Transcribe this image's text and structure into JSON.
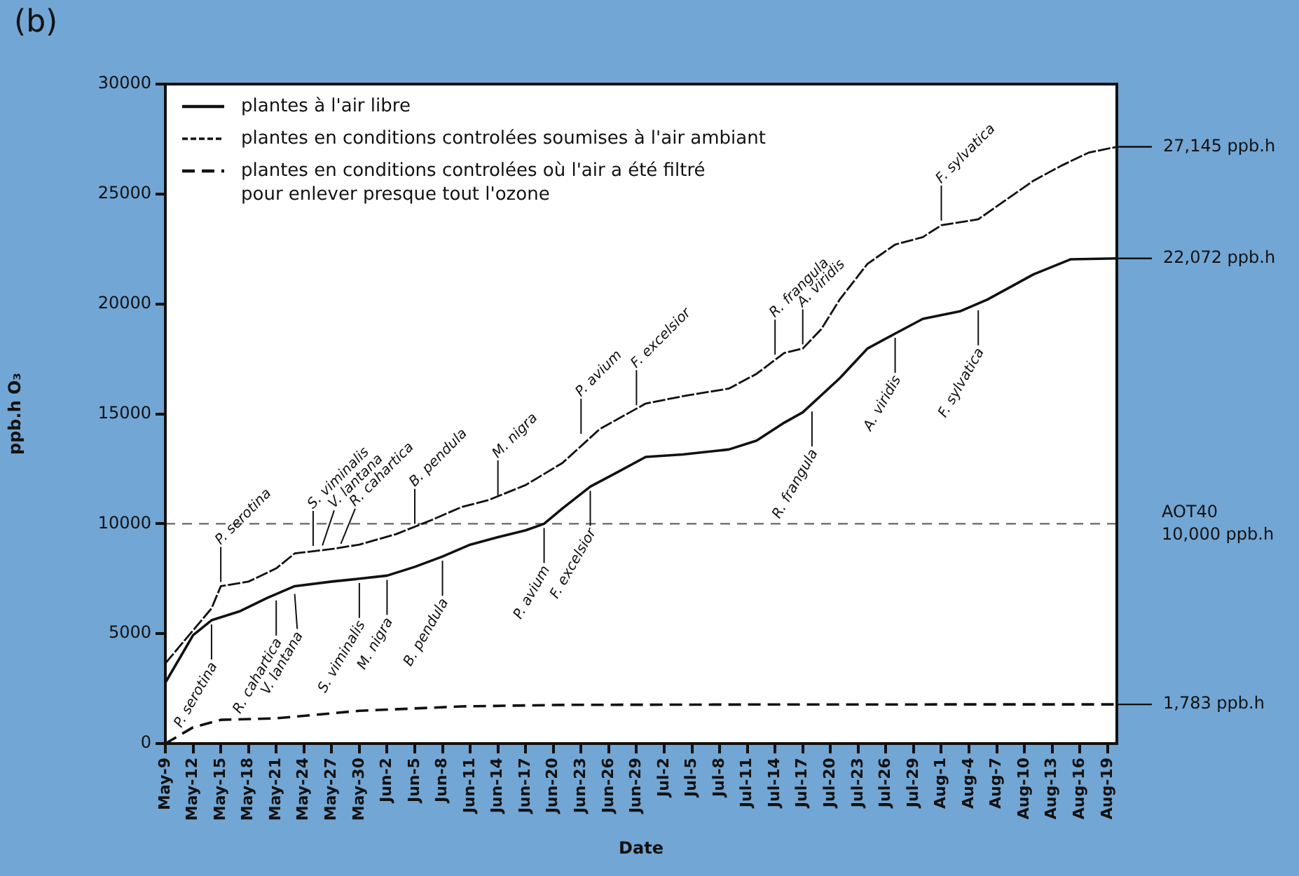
{
  "chart_data": {
    "type": "line",
    "title": "(b)",
    "xlabel": "Date",
    "ylabel": "ppb.h O₃",
    "xlim": [
      "--05-09",
      "--08-20"
    ],
    "xticks": [
      {
        "value": "--05-09",
        "label": "May-9"
      },
      {
        "value": "--05-12",
        "label": "May-12"
      },
      {
        "value": "--05-15",
        "label": "May-15"
      },
      {
        "value": "--05-18",
        "label": "May-18"
      },
      {
        "value": "--05-21",
        "label": "May-21"
      },
      {
        "value": "--05-24",
        "label": "May-24"
      },
      {
        "value": "--05-27",
        "label": "May-27"
      },
      {
        "value": "--05-30",
        "label": "May-30"
      },
      {
        "value": "--06-02",
        "label": "Jun-2"
      },
      {
        "value": "--06-05",
        "label": "Jun-5"
      },
      {
        "value": "--06-08",
        "label": "Jun-8"
      },
      {
        "value": "--06-11",
        "label": "Jun-11"
      },
      {
        "value": "--06-14",
        "label": "Jun-14"
      },
      {
        "value": "--06-17",
        "label": "Jun-17"
      },
      {
        "value": "--06-20",
        "label": "Jun-20"
      },
      {
        "value": "--06-23",
        "label": "Jun-23"
      },
      {
        "value": "--06-26",
        "label": "Jun-26"
      },
      {
        "value": "--06-29",
        "label": "Jun-29"
      },
      {
        "value": "--07-02",
        "label": "Jul-2"
      },
      {
        "value": "--07-05",
        "label": "Jul-5"
      },
      {
        "value": "--07-08",
        "label": "Jul-8"
      },
      {
        "value": "--07-11",
        "label": "Jul-11"
      },
      {
        "value": "--07-14",
        "label": "Jul-14"
      },
      {
        "value": "--07-17",
        "label": "Jul-17"
      },
      {
        "value": "--07-20",
        "label": "Jul-20"
      },
      {
        "value": "--07-23",
        "label": "Jul-23"
      },
      {
        "value": "--07-26",
        "label": "Jul-26"
      },
      {
        "value": "--07-29",
        "label": "Jul-29"
      },
      {
        "value": "--08-01",
        "label": "Aug-1"
      },
      {
        "value": "--08-04",
        "label": "Aug-4"
      },
      {
        "value": "--08-07",
        "label": "Aug-7"
      },
      {
        "value": "--08-10",
        "label": "Aug-10"
      },
      {
        "value": "--08-13",
        "label": "Aug-13"
      },
      {
        "value": "--08-16",
        "label": "Aug-16"
      },
      {
        "value": "--08-19",
        "label": "Aug-19"
      }
    ],
    "ylim": [
      0,
      30000
    ],
    "yticks": [
      0,
      5000,
      10000,
      15000,
      20000,
      25000,
      30000
    ],
    "legend": "top left",
    "grid": false,
    "marker": "none",
    "series": [
      {
        "name": "plantes à l'air libre",
        "color": "#111111",
        "line_style": "solid",
        "x": [
          "--05-09",
          "--05-12",
          "--05-14",
          "--05-17",
          "--05-20",
          "--05-23",
          "--05-27",
          "--05-30",
          "--06-02",
          "--06-05",
          "--06-08",
          "--06-11",
          "--06-14",
          "--06-17",
          "--06-19",
          "--06-21",
          "--06-24",
          "--06-27",
          "--06-30",
          "--07-04",
          "--07-09",
          "--07-12",
          "--07-15",
          "--07-17",
          "--07-21",
          "--07-24",
          "--07-27",
          "--07-30",
          "--08-03",
          "--08-06",
          "--08-11",
          "--08-15",
          "--08-20"
        ],
        "values": [
          2770,
          4930,
          5610,
          6010,
          6620,
          7160,
          7370,
          7500,
          7640,
          8040,
          8510,
          9050,
          9390,
          9700,
          10000,
          10700,
          11690,
          12360,
          13040,
          13150,
          13380,
          13780,
          14600,
          15070,
          16620,
          17970,
          18650,
          19320,
          19660,
          20200,
          21350,
          22030,
          22072
        ],
        "value_labels": [
          null,
          null,
          null,
          null,
          null,
          null,
          null,
          null,
          null,
          null,
          null,
          null,
          null,
          null,
          null,
          null,
          null,
          null,
          null,
          null,
          null,
          null,
          null,
          null,
          null,
          null,
          null,
          null,
          null,
          null,
          null,
          null,
          "22,072 ppb.h"
        ]
      },
      {
        "name": "plantes en conditions controlées soumises à l'air ambiant",
        "color": "#111111",
        "line_style": "dashed",
        "x": [
          "--05-09",
          "--05-14",
          "--05-15",
          "--05-18",
          "--05-21",
          "--05-23",
          "--05-27",
          "--05-30",
          "--06-03",
          "--06-07",
          "--06-10",
          "--06-13",
          "--06-17",
          "--06-21",
          "--06-25",
          "--06-30",
          "--07-04",
          "--07-09",
          "--07-12",
          "--07-15",
          "--07-17",
          "--07-19",
          "--07-21",
          "--07-24",
          "--07-27",
          "--07-30",
          "--08-01",
          "--08-05",
          "--08-08",
          "--08-11",
          "--08-14",
          "--08-17",
          "--08-20"
        ],
        "values": [
          3650,
          6150,
          7160,
          7370,
          7970,
          8650,
          8850,
          9050,
          9530,
          10200,
          10750,
          11080,
          11760,
          12770,
          14300,
          15470,
          15800,
          16150,
          16820,
          17770,
          17970,
          18850,
          20200,
          21820,
          22700,
          23040,
          23580,
          23850,
          24730,
          25610,
          26290,
          26890,
          27145
        ],
        "value_labels": [
          null,
          null,
          null,
          null,
          null,
          null,
          null,
          null,
          null,
          null,
          null,
          null,
          null,
          null,
          null,
          null,
          null,
          null,
          null,
          null,
          null,
          null,
          null,
          null,
          null,
          null,
          null,
          null,
          null,
          null,
          null,
          null,
          "27,145 ppb.h"
        ]
      },
      {
        "name": "plantes en conditions controlées où l'air a été filtré\npour enlever presque tout l'ozone",
        "color": "#111111",
        "line_style": "dashed",
        "x": [
          "--05-09",
          "--05-12",
          "--05-15",
          "--05-21",
          "--05-30",
          "--06-10",
          "--06-21",
          "--07-15",
          "--08-20"
        ],
        "values": [
          0,
          740,
          1080,
          1150,
          1490,
          1690,
          1760,
          1780,
          1783
        ],
        "value_labels": [
          null,
          null,
          null,
          null,
          null,
          null,
          null,
          null,
          "1,783 ppb.h"
        ]
      }
    ],
    "ref_lines": [
      {
        "axis": "y",
        "value": 10000,
        "label": "AOT40\n10,000 ppb.h",
        "color": "#666666",
        "line_style": "dashed"
      }
    ],
    "annotations": [
      {
        "text": "P. serotina",
        "x": "--05-15",
        "y": 7160
      },
      {
        "text": "S. viminalis",
        "x": "--05-25",
        "y": 8800
      },
      {
        "text": "V. lantana",
        "x": "--05-26",
        "y": 8820
      },
      {
        "text": "R. cahartica",
        "x": "--05-28",
        "y": 8900
      },
      {
        "text": "B. pendula",
        "x": "--06-05",
        "y": 9800
      },
      {
        "text": "M. nigra",
        "x": "--06-14",
        "y": 11100
      },
      {
        "text": "P. avium",
        "x": "--06-23",
        "y": 13900
      },
      {
        "text": "F. excelsior",
        "x": "--06-29",
        "y": 15200
      },
      {
        "text": "R. frangula",
        "x": "--07-14",
        "y": 17500
      },
      {
        "text": "A. viridis",
        "x": "--07-17",
        "y": 17970
      },
      {
        "text": "F. sylvatica",
        "x": "--08-01",
        "y": 23600
      },
      {
        "text": "P. serotina",
        "x": "--05-14",
        "y": 5610
      },
      {
        "text": "R. cahartica",
        "x": "--05-21",
        "y": 6700
      },
      {
        "text": "V. lantana",
        "x": "--05-23",
        "y": 7000
      },
      {
        "text": "S. viminalis",
        "x": "--05-30",
        "y": 7500
      },
      {
        "text": "M. nigra",
        "x": "--06-02",
        "y": 7640
      },
      {
        "text": "B. pendula",
        "x": "--06-08",
        "y": 8510
      },
      {
        "text": "P. avium",
        "x": "--06-19",
        "y": 10000
      },
      {
        "text": "F. excelsior",
        "x": "--06-24",
        "y": 11690
      },
      {
        "text": "R. frangula",
        "x": "--07-18",
        "y": 15300
      },
      {
        "text": "A. viridis",
        "x": "--07-27",
        "y": 18650
      },
      {
        "text": "F. sylvatica",
        "x": "--08-05",
        "y": 19900
      }
    ]
  }
}
